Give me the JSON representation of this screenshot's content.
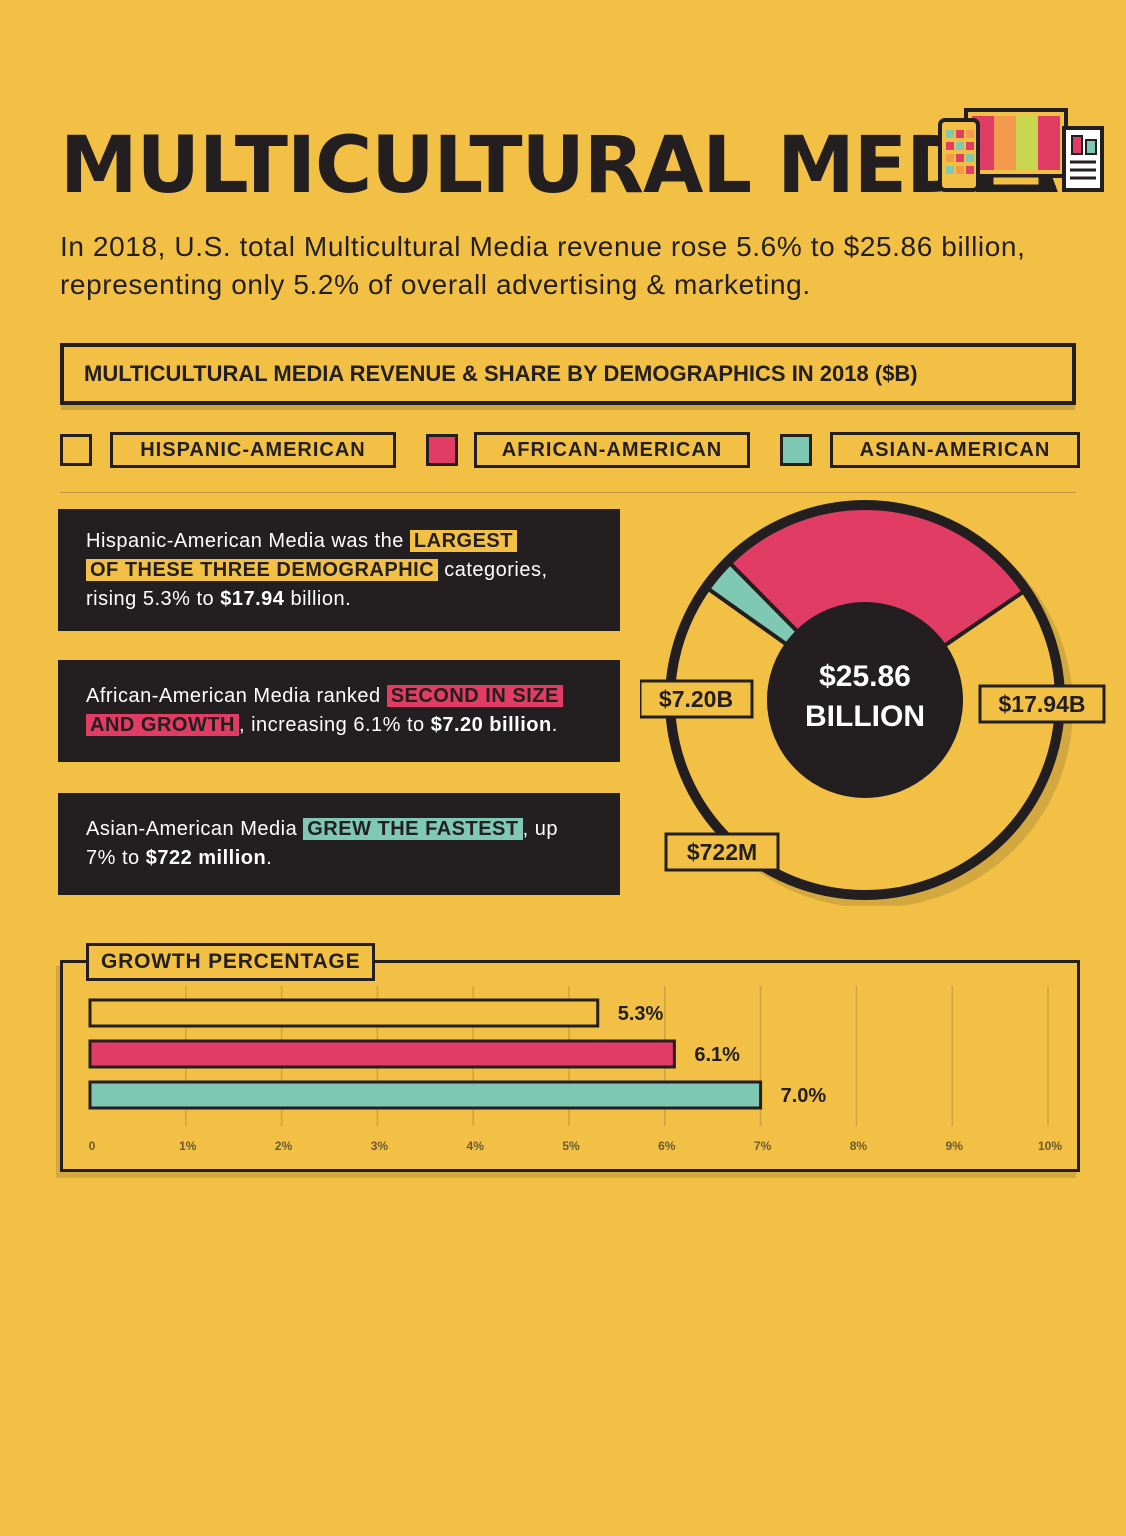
{
  "title": "MULTICULTURAL MEDIA",
  "intro": "In 2018, U.S. total Multicultural Media revenue rose 5.6% to $25.86 billion, representing only 5.2% of overall advertising & marketing.",
  "section_title": "MULTICULTURAL MEDIA REVENUE & SHARE BY DEMOGRAPHICS IN 2018 ($B)",
  "legend": [
    {
      "label": "HISPANIC-AMERICAN",
      "color": "#F2C044"
    },
    {
      "label": "AFRICAN-AMERICAN",
      "color": "#E03C64"
    },
    {
      "label": "ASIAN-AMERICAN",
      "color": "#7EC8B4"
    }
  ],
  "info_boxes": [
    {
      "pre": "Hispanic-American Media was the ",
      "highlight_1": "LARGEST",
      "highlight_2": "OF THESE THREE DEMOGRAPHIC",
      "mid": " categories, rising 5.3% to ",
      "value": "$17.94",
      "post": " billion.",
      "highlight_color": "#F2C044"
    },
    {
      "pre": "African-American Media ranked ",
      "highlight_1": "SECOND IN SIZE",
      "highlight_2": "AND GROWTH",
      "mid": ", increasing 6.1% to ",
      "value": "$7.20 billion",
      "post": ".",
      "highlight_color": "#E03C64"
    },
    {
      "pre": "Asian-American Media ",
      "highlight_1": "GREW THE FASTEST",
      "mid": ", up 7% to ",
      "value": "$722 million",
      "post": ".",
      "highlight_color": "#7EC8B4"
    }
  ],
  "chart_data": [
    {
      "type": "pie",
      "center_value": "$25.86",
      "center_unit": "BILLION",
      "slices": [
        {
          "label": "$17.94B",
          "value": 17.94,
          "color": "#F2C044"
        },
        {
          "label": "$722M",
          "value": 0.722,
          "color": "#7EC8B4"
        },
        {
          "label": "$7.20B",
          "value": 7.2,
          "color": "#E03C64"
        }
      ]
    },
    {
      "type": "bar",
      "title": "GROWTH PERCENTAGE",
      "categories": [
        "HISPANIC-AMERICAN",
        "AFRICAN-AMERICAN",
        "ASIAN-AMERICAN"
      ],
      "values": [
        5.3,
        6.1,
        7.0
      ],
      "value_labels": [
        "5.3%",
        "6.1%",
        "7.0%"
      ],
      "colors": [
        "#F2C044",
        "#E03C64",
        "#7EC8B4"
      ],
      "xlim": [
        0,
        10
      ],
      "ticks": [
        "0",
        "1%",
        "2%",
        "3%",
        "4%",
        "5%",
        "6%",
        "7%",
        "8%",
        "9%",
        "10%"
      ],
      "grid": true,
      "orientation": "horizontal"
    }
  ]
}
